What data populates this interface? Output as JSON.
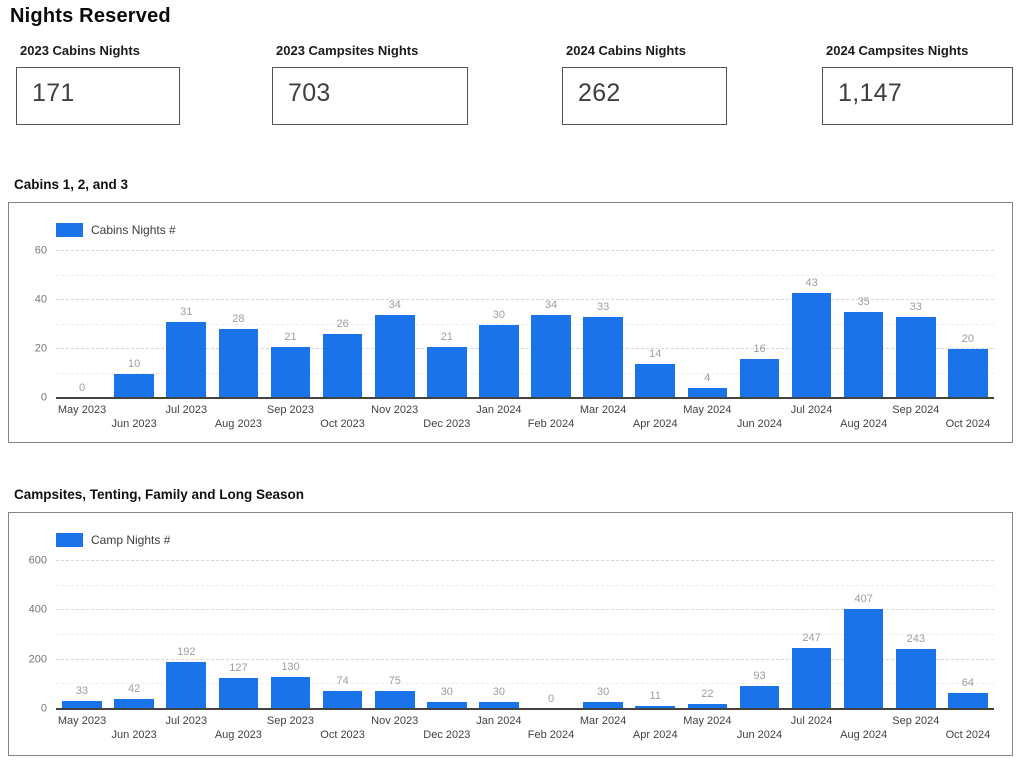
{
  "page": {
    "title": "Nights Reserved"
  },
  "scorecards": [
    {
      "label": "2023 Cabins Nights",
      "value": "171"
    },
    {
      "label": "2023 Campsites Nights",
      "value": "703"
    },
    {
      "label": "2024 Cabins Nights",
      "value": "262"
    },
    {
      "label": "2024 Campsites Nights",
      "value": "1,147"
    }
  ],
  "colors": {
    "bar": "#1a73e8",
    "bar_value_label": "#9e9e9e",
    "axis_tick": "#757575",
    "month_label": "#424242",
    "baseline": "#424242"
  },
  "chart_data": [
    {
      "type": "bar",
      "title": "Cabins 1, 2, and 3",
      "legend_position": "top-left",
      "grid": true,
      "categories": [
        "May 2023",
        "Jun 2023",
        "Jul 2023",
        "Aug 2023",
        "Sep 2023",
        "Oct 2023",
        "Nov 2023",
        "Dec 2023",
        "Jan 2024",
        "Feb 2024",
        "Mar 2024",
        "Apr 2024",
        "May 2024",
        "Jun 2024",
        "Jul 2024",
        "Aug 2024",
        "Sep 2024",
        "Oct 2024"
      ],
      "series": [
        {
          "name": "Cabins Nights #",
          "values": [
            0,
            10,
            31,
            28,
            21,
            26,
            34,
            21,
            30,
            34,
            33,
            14,
            4,
            16,
            43,
            35,
            33,
            20
          ]
        }
      ],
      "ylim": [
        0,
        60
      ],
      "yticks": [
        0,
        20,
        40,
        60
      ]
    },
    {
      "type": "bar",
      "title": "Campsites, Tenting, Family and Long Season",
      "legend_position": "top-left",
      "grid": true,
      "categories": [
        "May 2023",
        "Jun 2023",
        "Jul 2023",
        "Aug 2023",
        "Sep 2023",
        "Oct 2023",
        "Nov 2023",
        "Dec 2023",
        "Jan 2024",
        "Feb 2024",
        "Mar 2024",
        "Apr 2024",
        "May 2024",
        "Jun 2024",
        "Jul 2024",
        "Aug 2024",
        "Sep 2024",
        "Oct 2024"
      ],
      "series": [
        {
          "name": "Camp Nights #",
          "values": [
            33,
            42,
            192,
            127,
            130,
            74,
            75,
            30,
            30,
            0,
            30,
            11,
            22,
            93,
            247,
            407,
            243,
            64
          ]
        }
      ],
      "ylim": [
        0,
        600
      ],
      "yticks": [
        0,
        200,
        400,
        600
      ]
    }
  ]
}
